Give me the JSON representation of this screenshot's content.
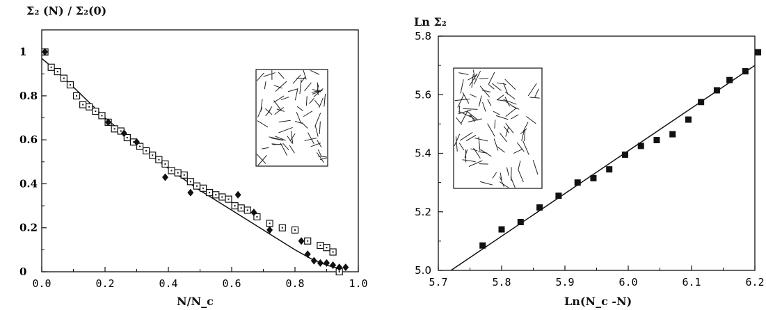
{
  "chart_data": [
    {
      "type": "scatter",
      "title": "Σ₂ (N) / Σ₂(0)",
      "xlabel": "N/N_c",
      "ylabel": "",
      "xlim": [
        0.0,
        1.0
      ],
      "ylim": [
        0.0,
        1.1
      ],
      "x_ticks": [
        "0.0",
        "0.2",
        "0.4",
        "0.6",
        "0.8",
        "1.0"
      ],
      "y_ticks": [
        "0",
        "0.2",
        "0.4",
        "0.6",
        "0.8",
        "1"
      ],
      "grid": false,
      "inset": "random stick network",
      "series": [
        {
          "marker": "open-square",
          "x": [
            0.01,
            0.03,
            0.05,
            0.07,
            0.09,
            0.11,
            0.13,
            0.15,
            0.17,
            0.19,
            0.21,
            0.23,
            0.25,
            0.27,
            0.29,
            0.31,
            0.33,
            0.35,
            0.37,
            0.39,
            0.41,
            0.43,
            0.45,
            0.47,
            0.49,
            0.51,
            0.53,
            0.55,
            0.57,
            0.59,
            0.61,
            0.63,
            0.65,
            0.68,
            0.72,
            0.76,
            0.8,
            0.84,
            0.88,
            0.9,
            0.92,
            0.94
          ],
          "y": [
            1.0,
            0.93,
            0.91,
            0.88,
            0.85,
            0.8,
            0.76,
            0.75,
            0.73,
            0.71,
            0.68,
            0.65,
            0.64,
            0.61,
            0.59,
            0.57,
            0.55,
            0.53,
            0.51,
            0.49,
            0.46,
            0.45,
            0.44,
            0.41,
            0.39,
            0.38,
            0.36,
            0.35,
            0.34,
            0.33,
            0.3,
            0.29,
            0.28,
            0.25,
            0.22,
            0.2,
            0.19,
            0.14,
            0.12,
            0.11,
            0.09,
            0.0
          ]
        },
        {
          "marker": "filled-diamond",
          "x": [
            0.01,
            0.21,
            0.26,
            0.3,
            0.39,
            0.47,
            0.62,
            0.67,
            0.72,
            0.82,
            0.84,
            0.86,
            0.88,
            0.9,
            0.92,
            0.94,
            0.96
          ],
          "y": [
            1.0,
            0.68,
            0.63,
            0.59,
            0.43,
            0.36,
            0.35,
            0.27,
            0.19,
            0.14,
            0.08,
            0.05,
            0.04,
            0.04,
            0.03,
            0.02,
            0.02
          ]
        }
      ],
      "fit_line": {
        "x": [
          0.0,
          0.05,
          0.1,
          0.15,
          0.2,
          0.3,
          0.4,
          0.5,
          0.6,
          0.7,
          0.8,
          0.85,
          0.9,
          0.95
        ],
        "y": [
          0.97,
          0.91,
          0.84,
          0.77,
          0.7,
          0.58,
          0.47,
          0.37,
          0.28,
          0.19,
          0.1,
          0.06,
          0.03,
          0.01
        ]
      }
    },
    {
      "type": "scatter",
      "title": "Ln Σ₂",
      "xlabel": "Ln(N_c -N)",
      "ylabel": "",
      "xlim": [
        5.7,
        6.2
      ],
      "ylim": [
        5.0,
        5.8
      ],
      "x_ticks": [
        "5.7",
        "5.8",
        "5.9",
        "6.0",
        "6.1",
        "6.2"
      ],
      "y_ticks": [
        "5.0",
        "5.2",
        "5.4",
        "5.6",
        "5.8"
      ],
      "grid": false,
      "inset": "random stick network",
      "series": [
        {
          "marker": "filled-square",
          "x": [
            5.77,
            5.8,
            5.83,
            5.86,
            5.89,
            5.92,
            5.945,
            5.97,
            5.995,
            6.02,
            6.045,
            6.07,
            6.095,
            6.115,
            6.14,
            6.16,
            6.185,
            6.205
          ],
          "y": [
            5.085,
            5.14,
            5.165,
            5.215,
            5.255,
            5.3,
            5.315,
            5.345,
            5.395,
            5.425,
            5.445,
            5.465,
            5.515,
            5.575,
            5.615,
            5.65,
            5.68,
            5.745
          ]
        }
      ],
      "fit_line": {
        "x": [
          5.72,
          6.2
        ],
        "y": [
          5.0,
          5.7
        ]
      }
    }
  ]
}
